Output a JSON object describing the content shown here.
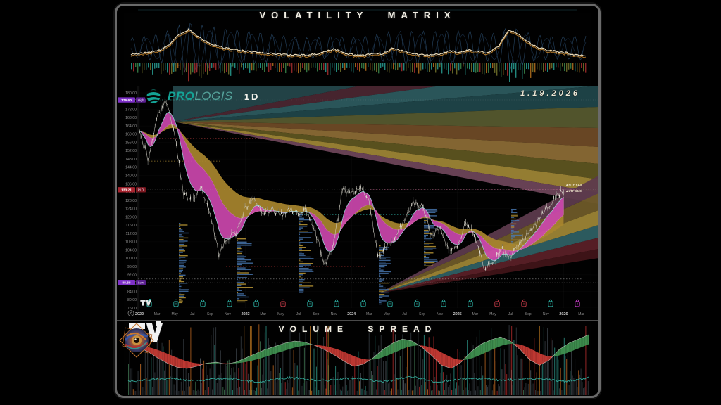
{
  "top_panel": {
    "title": "VOLATILITY MATRIX"
  },
  "bottom_panel": {
    "title": "VOLUME SPREAD"
  },
  "main_chart": {
    "logo_bold": "PRO",
    "logo_light": "LOGIS",
    "timeframe": "1D",
    "date": "1.19.2026",
    "price_tags": {
      "high": {
        "value": "176.60",
        "label": "High",
        "bg": "#7e30c8",
        "label_bg": "#5a1f8f",
        "price": 176.6
      },
      "last": {
        "value": "133.21",
        "label": "PLD",
        "bg": "#a8232e",
        "label_bg": "#7c1820",
        "price": 133.21
      },
      "low": {
        "value": "88.38",
        "label": "Low",
        "bg": "#7e30c8",
        "label_bg": "#5a1f8f",
        "price": 88.38
      }
    },
    "annotations": [
      {
        "text": "▲HTF 61.8",
        "price": 135.6
      },
      {
        "text": "▲LTF 61.8",
        "price": 132.6
      }
    ],
    "y_axis": {
      "max": 180,
      "min": 76,
      "step": 4
    },
    "x_labels": [
      "2022",
      "Mar",
      "May",
      "Jul",
      "Sep",
      "Nov",
      "2023",
      "Mar",
      "May",
      "Jul",
      "Sep",
      "Nov",
      "2024",
      "Mar",
      "May",
      "Jul",
      "Sep",
      "Nov",
      "2025",
      "Mar",
      "May",
      "Jul",
      "Sep",
      "Nov",
      "2026",
      "Mar"
    ],
    "year_label_indices": [
      0,
      6,
      12,
      18,
      24
    ],
    "event_markers": [
      "teal",
      "teal",
      "teal",
      "teal",
      "teal",
      "red",
      "teal",
      "teal",
      "teal",
      "teal",
      "teal",
      "teal",
      "teal",
      "red",
      "red",
      "teal",
      "magenta"
    ],
    "marker_colors": {
      "teal": "#2aa79b",
      "red": "#c03a46",
      "magenta": "#c13ac1"
    }
  },
  "colors": {
    "prologis_teal": "#14a396",
    "title_text": "#f2efe4",
    "axis_text": "#8f8f8f",
    "ribbon_magenta": "#cf48b0",
    "ribbon_mustard": "#a8862e",
    "spread_green": "#3f9150",
    "spread_red": "#c63a34",
    "fan1_top": "#24464a",
    "fan1": [
      "#4a2630",
      "#2c5a5e",
      "#1f4549",
      "#55582e",
      "#6e4a26",
      "#8a6a35",
      "#5d5420",
      "#9c8435",
      "#6d4458"
    ],
    "fan2": [
      "#5c3a4c",
      "#6e5a28",
      "#9c8435",
      "#2e5f63",
      "#5a2027",
      "#401418"
    ]
  },
  "chart_data": [
    {
      "type": "candlestick",
      "name": "Prologis (PLD) price, daily",
      "x_unit": "month",
      "x_start": "2022-01",
      "x_end": "2026-01",
      "monthly_close": [
        161,
        148,
        168,
        176.6,
        160,
        131,
        128,
        134,
        121,
        102,
        110,
        113,
        125,
        130,
        122,
        124,
        121,
        124,
        122,
        123,
        111,
        97,
        108,
        133,
        132,
        135,
        128,
        101,
        106,
        111,
        118,
        127,
        125,
        112,
        114,
        104,
        107,
        118,
        111,
        95,
        99,
        104,
        101,
        108,
        112,
        117,
        124,
        129,
        133.21
      ],
      "high": 176.6,
      "low": 88.38,
      "last": 133.21,
      "ylim": [
        76,
        180
      ],
      "grid": "faint",
      "legend": "none"
    },
    {
      "type": "line",
      "name": "Volatility Matrix",
      "range": [
        0,
        100
      ],
      "values": [
        32,
        34,
        38,
        44,
        60,
        88,
        100,
        80,
        64,
        54,
        48,
        44,
        40,
        37,
        35,
        33,
        32,
        31,
        30,
        32,
        40,
        46,
        36,
        31,
        30,
        35,
        33,
        50,
        42,
        35,
        31,
        30,
        33,
        42,
        37,
        44,
        40,
        36,
        55,
        98,
        88,
        66,
        52,
        44,
        40,
        36,
        31,
        29
      ]
    },
    {
      "type": "area",
      "name": "Volume Spread oscillator",
      "range": [
        -1,
        1
      ],
      "values": [
        0.5,
        0.4,
        0.2,
        -0.1,
        -0.35,
        -0.55,
        -0.6,
        -0.5,
        -0.35,
        -0.3,
        -0.4,
        -0.3,
        -0.1,
        0.1,
        0.3,
        0.45,
        0.6,
        0.7,
        0.65,
        0.5,
        0.3,
        0.05,
        -0.25,
        -0.5,
        -0.4,
        -0.1,
        0.3,
        0.6,
        0.8,
        0.7,
        0.4,
        0,
        -0.45,
        -0.6,
        -0.3,
        0.2,
        0.55,
        0.75,
        0.9,
        0.7,
        0.3,
        -0.2,
        -0.45,
        -0.2,
        0.3,
        0.6,
        0.8,
        1.0
      ]
    }
  ]
}
